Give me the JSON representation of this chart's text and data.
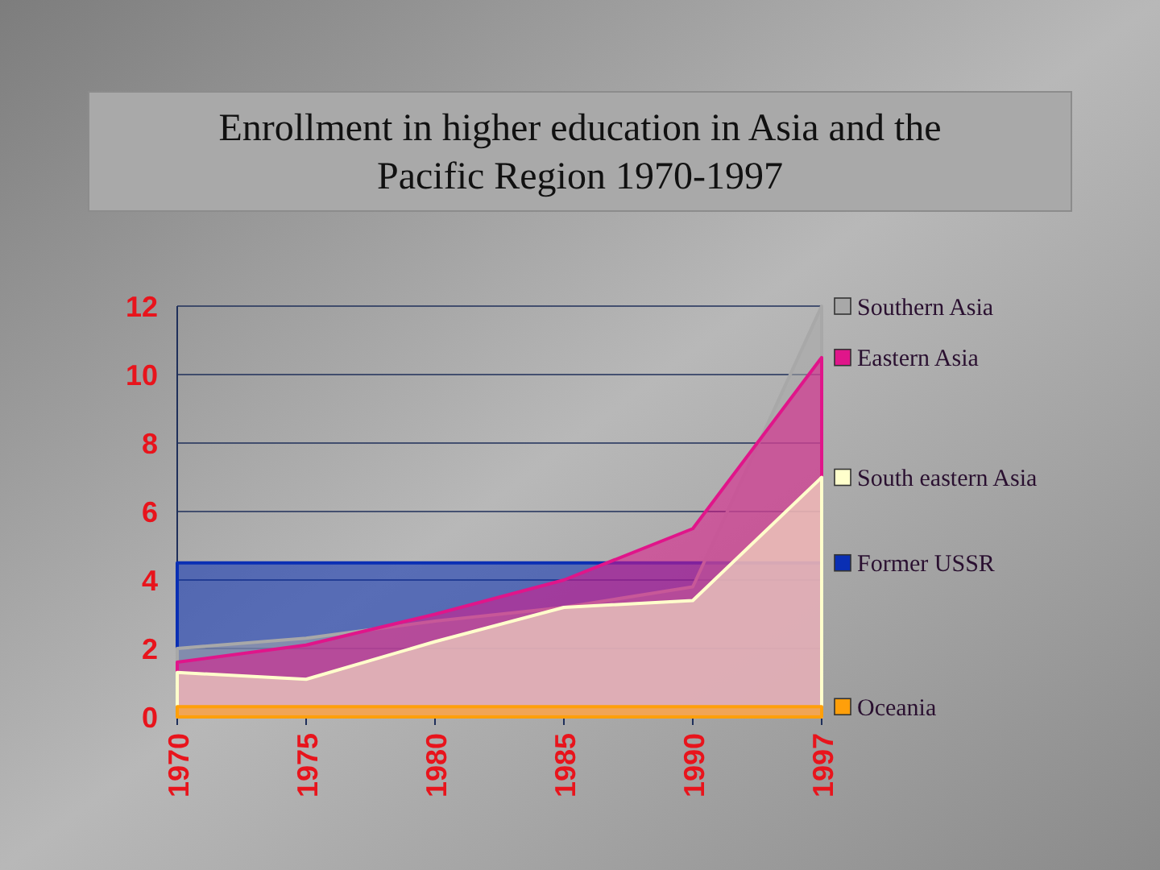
{
  "chart_data": {
    "type": "area",
    "title": "Enrollment in higher education in Asia and the Pacific Region 1970-1997",
    "categories": [
      "1970",
      "1975",
      "1980",
      "1985",
      "1990",
      "1997"
    ],
    "ylim": [
      0,
      12
    ],
    "legend": "right",
    "yticks": [
      0,
      2,
      4,
      6,
      8,
      10,
      12
    ],
    "grid": "y",
    "series": [
      {
        "name": "Former USSR",
        "color": "#0a2fb4",
        "values": [
          4.5,
          4.5,
          4.5,
          4.5,
          4.5,
          4.5
        ]
      },
      {
        "name": "Southern Asia",
        "color": "#a8a8a8",
        "values": [
          2,
          2.3,
          2.8,
          3.2,
          3.8,
          12
        ]
      },
      {
        "name": "Eastern Asia",
        "color": "#e0158a",
        "values": [
          1.6,
          2.1,
          3,
          4,
          5.5,
          10.5
        ]
      },
      {
        "name": "South eastern Asia",
        "color": "#ffffcc",
        "values": [
          1.3,
          1.1,
          2.2,
          3.2,
          3.4,
          7
        ]
      },
      {
        "name": "Oceania",
        "color": "#ff9f0a",
        "values": [
          0.3,
          0.3,
          0.3,
          0.3,
          0.3,
          0.3
        ]
      }
    ]
  }
}
